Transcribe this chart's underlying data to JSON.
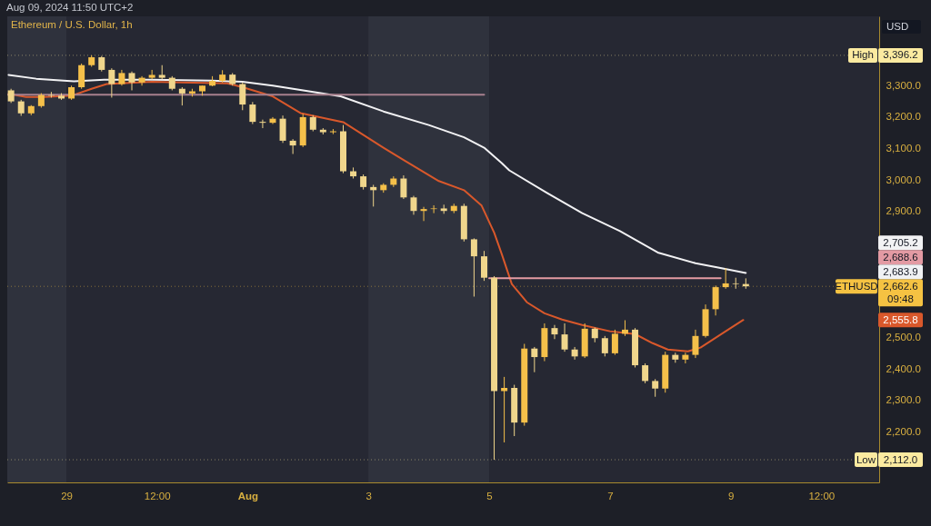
{
  "chart_data": {
    "type": "candlestick",
    "title": "Ethereum / U.S. Dollar, 1h",
    "subtitle": "Aug 09, 2024 11:50 UTC+2",
    "ylabel": "USD",
    "x": [
      "2024-07-28T02:00",
      "2024-07-28T06:00",
      "2024-07-28T10:00",
      "2024-07-28T14:00",
      "2024-07-28T18:00",
      "2024-07-28T22:00",
      "2024-07-29T02:00",
      "2024-07-29T06:00",
      "2024-07-29T10:00",
      "2024-07-29T14:00",
      "2024-07-29T18:00",
      "2024-07-29T22:00",
      "2024-07-30T02:00",
      "2024-07-30T06:00",
      "2024-07-30T10:00",
      "2024-07-30T14:00",
      "2024-07-30T18:00",
      "2024-07-30T22:00",
      "2024-07-31T02:00",
      "2024-07-31T06:00",
      "2024-07-31T10:00",
      "2024-07-31T14:00",
      "2024-07-31T18:00",
      "2024-07-31T22:00",
      "2024-08-01T02:00",
      "2024-08-01T06:00",
      "2024-08-01T10:00",
      "2024-08-01T14:00",
      "2024-08-01T18:00",
      "2024-08-01T22:00",
      "2024-08-02T02:00",
      "2024-08-02T06:00",
      "2024-08-02T10:00",
      "2024-08-02T14:00",
      "2024-08-02T18:00",
      "2024-08-02T22:00",
      "2024-08-03T02:00",
      "2024-08-03T06:00",
      "2024-08-03T10:00",
      "2024-08-03T14:00",
      "2024-08-03T18:00",
      "2024-08-03T22:00",
      "2024-08-04T02:00",
      "2024-08-04T06:00",
      "2024-08-04T10:00",
      "2024-08-04T14:00",
      "2024-08-04T18:00",
      "2024-08-04T22:00",
      "2024-08-05T02:00",
      "2024-08-05T06:00",
      "2024-08-05T10:00",
      "2024-08-05T14:00",
      "2024-08-05T18:00",
      "2024-08-05T22:00",
      "2024-08-06T02:00",
      "2024-08-06T06:00",
      "2024-08-06T10:00",
      "2024-08-06T14:00",
      "2024-08-06T18:00",
      "2024-08-06T22:00",
      "2024-08-07T02:00",
      "2024-08-07T06:00",
      "2024-08-07T10:00",
      "2024-08-07T14:00",
      "2024-08-07T18:00",
      "2024-08-07T22:00",
      "2024-08-08T02:00",
      "2024-08-08T06:00",
      "2024-08-08T10:00",
      "2024-08-08T14:00",
      "2024-08-08T18:00",
      "2024-08-08T22:00",
      "2024-08-09T02:00",
      "2024-08-09T06:00"
    ],
    "ohlc": [
      [
        3285,
        3290,
        3245,
        3250
      ],
      [
        3250,
        3255,
        3204,
        3212
      ],
      [
        3212,
        3238,
        3206,
        3235
      ],
      [
        3235,
        3276,
        3230,
        3270
      ],
      [
        3270,
        3280,
        3262,
        3268
      ],
      [
        3268,
        3276,
        3255,
        3259
      ],
      [
        3259,
        3300,
        3255,
        3295
      ],
      [
        3295,
        3370,
        3290,
        3365
      ],
      [
        3365,
        3396.2,
        3360,
        3390
      ],
      [
        3390,
        3394,
        3345,
        3350
      ],
      [
        3350,
        3355,
        3262,
        3305
      ],
      [
        3305,
        3350,
        3300,
        3340
      ],
      [
        3340,
        3345,
        3285,
        3310
      ],
      [
        3310,
        3330,
        3300,
        3325
      ],
      [
        3325,
        3350,
        3320,
        3334
      ],
      [
        3334,
        3365,
        3320,
        3325
      ],
      [
        3325,
        3330,
        3285,
        3290
      ],
      [
        3290,
        3295,
        3237,
        3275
      ],
      [
        3275,
        3290,
        3265,
        3282
      ],
      [
        3282,
        3300,
        3268,
        3300
      ],
      [
        3300,
        3330,
        3298,
        3315
      ],
      [
        3315,
        3349,
        3310,
        3335
      ],
      [
        3335,
        3340,
        3300,
        3305
      ],
      [
        3305,
        3310,
        3222,
        3240
      ],
      [
        3240,
        3248,
        3178,
        3185
      ],
      [
        3185,
        3192,
        3165,
        3182
      ],
      [
        3182,
        3200,
        3178,
        3195
      ],
      [
        3195,
        3205,
        3118,
        3125
      ],
      [
        3125,
        3130,
        3083,
        3110
      ],
      [
        3110,
        3210,
        3105,
        3200
      ],
      [
        3200,
        3206,
        3155,
        3160
      ],
      [
        3160,
        3165,
        3145,
        3152
      ],
      [
        3152,
        3162,
        3146,
        3155
      ],
      [
        3155,
        3175,
        3022,
        3028
      ],
      [
        3028,
        3040,
        3005,
        3012
      ],
      [
        3012,
        3018,
        2970,
        2978
      ],
      [
        2978,
        2985,
        2916,
        2968
      ],
      [
        2968,
        2990,
        2960,
        2985
      ],
      [
        2985,
        3012,
        2978,
        3005
      ],
      [
        3005,
        3015,
        2940,
        2945
      ],
      [
        2945,
        2950,
        2890,
        2902
      ],
      [
        2902,
        2915,
        2870,
        2908
      ],
      [
        2908,
        2920,
        2895,
        2910
      ],
      [
        2910,
        2922,
        2893,
        2902
      ],
      [
        2902,
        2925,
        2895,
        2918
      ],
      [
        2918,
        2925,
        2805,
        2812
      ],
      [
        2812,
        2815,
        2630,
        2758
      ],
      [
        2758,
        2775,
        2680,
        2690
      ],
      [
        2690,
        2695,
        2112.0,
        2330
      ],
      [
        2330,
        2375,
        2167,
        2340
      ],
      [
        2340,
        2350,
        2187,
        2230
      ],
      [
        2230,
        2480,
        2220,
        2465
      ],
      [
        2465,
        2470,
        2390,
        2438
      ],
      [
        2438,
        2545,
        2425,
        2530
      ],
      [
        2530,
        2540,
        2495,
        2510
      ],
      [
        2510,
        2545,
        2455,
        2462
      ],
      [
        2462,
        2470,
        2430,
        2440
      ],
      [
        2440,
        2545,
        2435,
        2528
      ],
      [
        2528,
        2532,
        2485,
        2498
      ],
      [
        2498,
        2505,
        2440,
        2450
      ],
      [
        2450,
        2525,
        2445,
        2512
      ],
      [
        2512,
        2555,
        2505,
        2525
      ],
      [
        2525,
        2530,
        2405,
        2412
      ],
      [
        2412,
        2418,
        2355,
        2362
      ],
      [
        2362,
        2368,
        2312,
        2338
      ],
      [
        2338,
        2455,
        2325,
        2445
      ],
      [
        2445,
        2452,
        2420,
        2430
      ],
      [
        2430,
        2452,
        2418,
        2445
      ],
      [
        2445,
        2525,
        2435,
        2505
      ],
      [
        2505,
        2605,
        2500,
        2590
      ],
      [
        2590,
        2665,
        2570,
        2660
      ],
      [
        2660,
        2720,
        2655,
        2672
      ],
      [
        2672,
        2690,
        2655,
        2670
      ],
      [
        2670,
        2688,
        2655,
        2662.6
      ]
    ],
    "colors": [
      "#f0d68c",
      "#f0d68c",
      "#f5c04a",
      "#f5c04a",
      "#f0d68c",
      "#f0d68c",
      "#f5c04a",
      "#f5c04a",
      "#f5c04a",
      "#f0d68c",
      "#f0d68c",
      "#f5c04a",
      "#f0d68c",
      "#f5c04a",
      "#f5c04a",
      "#f0d68c",
      "#f0d68c",
      "#f0d68c",
      "#f5c04a",
      "#f5c04a",
      "#f5c04a",
      "#f5c04a",
      "#f0d68c",
      "#f0d68c",
      "#f0d68c",
      "#f0d68c",
      "#f5c04a",
      "#f0d68c",
      "#f0d68c",
      "#f5c04a",
      "#f0d68c",
      "#f0d68c",
      "#f5c04a",
      "#f0d68c",
      "#f0d68c",
      "#f0d68c",
      "#f0d68c",
      "#f5c04a",
      "#f5c04a",
      "#f0d68c",
      "#f0d68c",
      "#f5c04a",
      "#f5c04a",
      "#f0d68c",
      "#f5c04a",
      "#f0d68c",
      "#f0d68c",
      "#f0d68c",
      "#f0d68c",
      "#f5c04a",
      "#f0d68c",
      "#f5c04a",
      "#f0d68c",
      "#f5c04a",
      "#f0d68c",
      "#f0d68c",
      "#f0d68c",
      "#f5c04a",
      "#f0d68c",
      "#f0d68c",
      "#f5c04a",
      "#f5c04a",
      "#f0d68c",
      "#f0d68c",
      "#f0d68c",
      "#f5c04a",
      "#f0d68c",
      "#f5c04a",
      "#f5c04a",
      "#f5c04a",
      "#f5c04a",
      "#f5c04a",
      "#f0d68c",
      "#f0d68c"
    ],
    "series": [
      {
        "type": "line",
        "color": "#f2f2f4",
        "x": [
          "2024-07-28T01:00",
          "2024-07-28T12:00",
          "2024-07-29T03:00",
          "2024-07-29T15:00",
          "2024-07-30T10:00",
          "2024-07-31T10:00",
          "2024-07-31T22:00",
          "2024-08-01T10:00",
          "2024-08-02T01:00",
          "2024-08-02T13:00",
          "2024-08-03T06:00",
          "2024-08-04T00:00",
          "2024-08-04T14:00",
          "2024-08-04T22:00",
          "2024-08-05T05:00",
          "2024-08-05T08:00",
          "2024-08-05T23:00",
          "2024-08-06T13:00",
          "2024-08-07T04:00",
          "2024-08-07T19:00",
          "2024-08-08T10:00",
          "2024-08-08T19:00",
          "2024-08-09T06:00"
        ],
        "values": [
          3334,
          3322,
          3314,
          3319,
          3319,
          3316,
          3312,
          3300,
          3281,
          3266,
          3218,
          3175,
          3136,
          3103,
          3054,
          3031,
          2959,
          2895,
          2838,
          2770,
          2736,
          2722,
          2705.2
        ]
      },
      {
        "type": "line",
        "color": "#d9582b",
        "x": [
          "2024-07-28T01:00",
          "2024-07-28T08:00",
          "2024-07-28T15:00",
          "2024-07-29T02:00",
          "2024-07-29T10:00",
          "2024-07-29T16:00",
          "2024-07-30T10:00",
          "2024-07-30T22:00",
          "2024-07-31T16:00",
          "2024-07-31T22:00",
          "2024-08-01T10:00",
          "2024-08-01T21:00",
          "2024-08-02T14:00",
          "2024-08-03T06:00",
          "2024-08-03T14:00",
          "2024-08-04T04:00",
          "2024-08-04T14:00",
          "2024-08-04T21:00",
          "2024-08-05T02:00",
          "2024-08-05T05:00",
          "2024-08-05T09:00",
          "2024-08-05T15:00",
          "2024-08-05T22:00",
          "2024-08-06T05:00",
          "2024-08-06T13:00",
          "2024-08-07T00:00",
          "2024-08-07T10:00",
          "2024-08-07T17:00",
          "2024-08-07T23:00",
          "2024-08-08T07:00",
          "2024-08-08T12:00",
          "2024-08-08T22:00",
          "2024-08-09T05:00"
        ],
        "values": [
          3274,
          3264,
          3264,
          3268,
          3290,
          3305,
          3312,
          3310,
          3307,
          3295,
          3266,
          3213,
          3184,
          3103,
          3064,
          2997,
          2968,
          2919,
          2833,
          2765,
          2670,
          2612,
          2577,
          2557,
          2540,
          2520,
          2511,
          2482,
          2462,
          2456,
          2468,
          2520,
          2555.8
        ]
      },
      {
        "type": "line",
        "color": "#a8808e",
        "x": [
          "2024-07-28T00:30",
          "2024-08-04T22:00"
        ],
        "values": [
          3271,
          3271
        ]
      },
      {
        "type": "line",
        "color": "#e39aa3",
        "x": [
          "2024-08-05T00:00",
          "2024-08-08T20:00"
        ],
        "values": [
          2688.6,
          2688.6
        ]
      }
    ],
    "ref_lines": [
      {
        "axis": "y",
        "value": 3396.2,
        "label": "High",
        "color": "#fbeaa0",
        "line_style": "dotted"
      },
      {
        "axis": "y",
        "value": 2112.0,
        "label": "Low",
        "color": "#fbeaa0",
        "line_style": "dotted"
      },
      {
        "axis": "y",
        "value": 2662.6,
        "label": "ETHUSD",
        "color": "#f5c242",
        "line_style": "dotted"
      }
    ],
    "bands": [
      {
        "axis": "x",
        "from": "2024-07-28T00:30",
        "to": "2024-07-29",
        "color": "#2f323d"
      },
      {
        "axis": "x",
        "from": "2024-08-03",
        "to": "2024-08-05",
        "color": "#2f323d"
      }
    ],
    "annotations": [
      "3,396.2",
      "2,705.2",
      "2,688.6",
      "2,683.9",
      "2,662.6",
      "09:48",
      "2,555.8",
      "2,112.0"
    ],
    "xlim": [
      "2024-07-28T00:30",
      "2024-08-11T11:00"
    ],
    "ylim": [
      2040,
      3520
    ],
    "xticks": [
      {
        "value": "2024-07-29",
        "label": "29"
      },
      {
        "value": "2024-07-30T12:00",
        "label": "12:00"
      },
      {
        "value": "2024-08-01",
        "label": "Aug"
      },
      {
        "value": "2024-08-03",
        "label": "3"
      },
      {
        "value": "2024-08-05",
        "label": "5"
      },
      {
        "value": "2024-08-07",
        "label": "7"
      },
      {
        "value": "2024-08-09",
        "label": "9"
      },
      {
        "value": "2024-08-10T12:00",
        "label": "12:00"
      }
    ],
    "yticks": [
      {
        "value": 2200,
        "label": "2,200.0"
      },
      {
        "value": 2300,
        "label": "2,300.0"
      },
      {
        "value": 2400,
        "label": "2,400.0"
      },
      {
        "value": 2500,
        "label": "2,500.0"
      },
      {
        "value": 2900,
        "label": "2,900.0"
      },
      {
        "value": 3000,
        "label": "3,000.0"
      },
      {
        "value": 3100,
        "label": "3,100.0"
      },
      {
        "value": 3200,
        "label": "3,200.0"
      },
      {
        "value": 3300,
        "label": "3,300.0"
      }
    ],
    "grid": false
  }
}
